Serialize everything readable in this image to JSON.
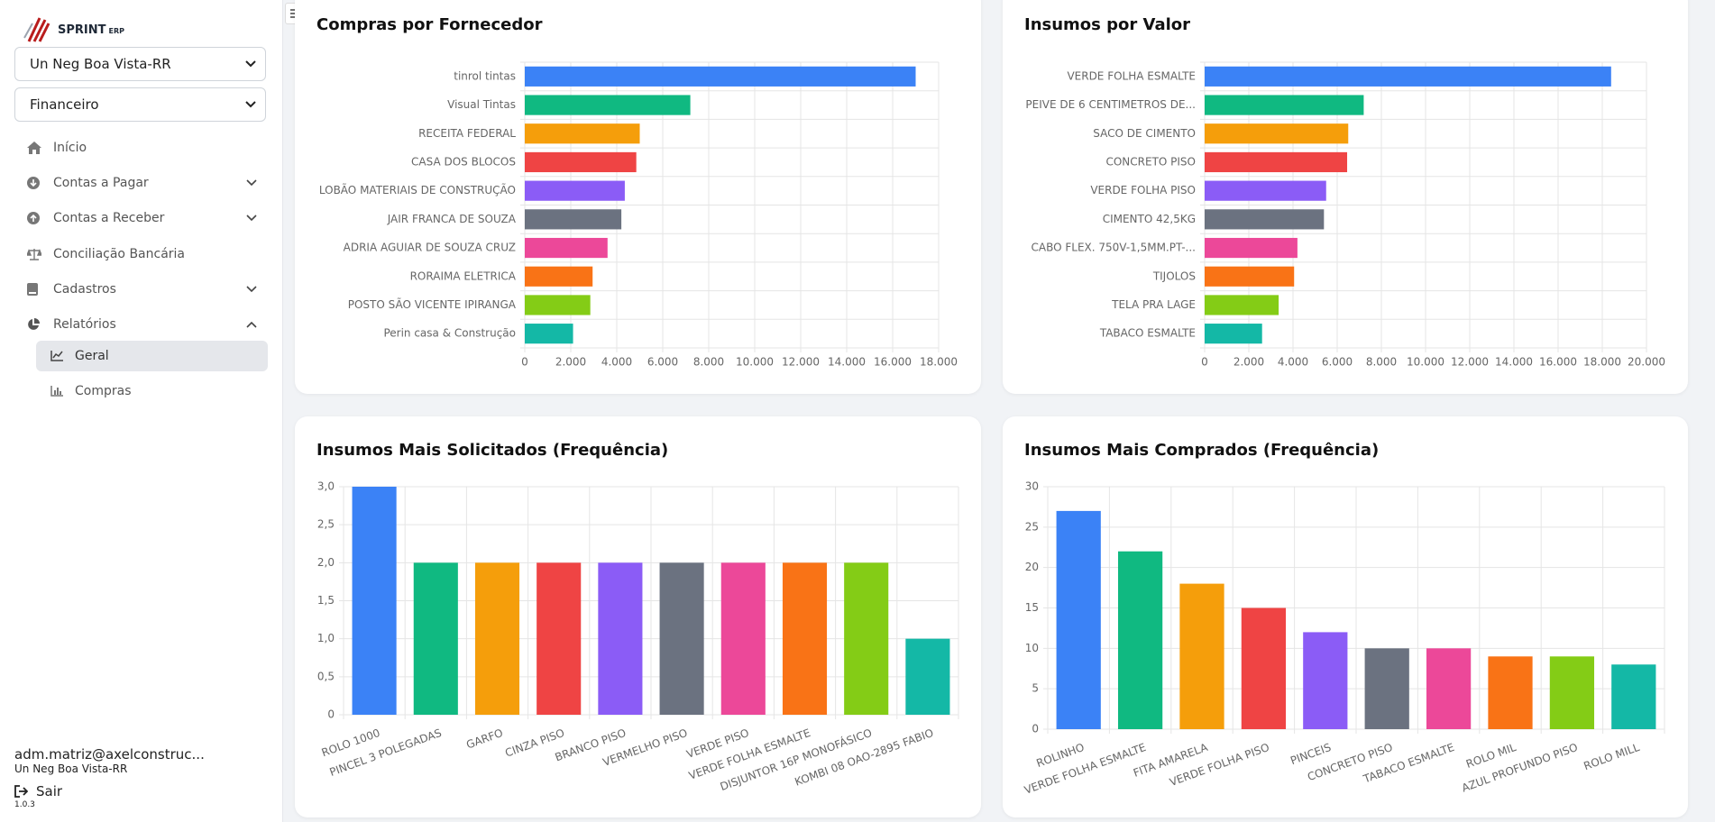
{
  "sidebar": {
    "logo": {
      "name": "SPRINT",
      "suffix": "ERP"
    },
    "selects": [
      "Un Neg Boa Vista-RR",
      "Financeiro"
    ],
    "menu": [
      "Início",
      "Contas a Pagar",
      "Contas a Receber",
      "Conciliação Bancária",
      "Cadastros",
      "Relatórios"
    ],
    "submenu": [
      "Geral",
      "Compras"
    ],
    "user": {
      "email": "adm.matriz@axelconstruc...",
      "unit": "Un Neg Boa Vista-RR",
      "logout": "Sair",
      "version": "1.0.3"
    }
  },
  "chart_data": [
    {
      "type": "hbar",
      "title": "Compras por Fornecedor",
      "categories": [
        "tinrol tintas",
        "Visual Tintas",
        "RECEITA FEDERAL",
        "CASA DOS BLOCOS",
        "LOBÃO MATERIAIS DE CONSTRUÇÃO",
        "JAIR FRANCA DE SOUZA",
        "ADRIA AGUIAR DE SOUZA CRUZ",
        "RORAIMA ELETRICA",
        "POSTO SÃO VICENTE IPIRANGA",
        "Perin casa & Construção"
      ],
      "values": [
        17000,
        7200,
        5000,
        4850,
        4350,
        4200,
        3600,
        2950,
        2850,
        2100
      ],
      "colors": [
        "#3b82f6",
        "#10b981",
        "#f59e0b",
        "#ef4444",
        "#8b5cf6",
        "#6b7280",
        "#ec4899",
        "#f97316",
        "#84cc16",
        "#14b8a6"
      ],
      "xlim": [
        0,
        18000
      ],
      "xticks": [
        0,
        {
          "value": 2000,
          "label": "2.000"
        },
        {
          "value": 4000,
          "label": "4.000"
        },
        {
          "value": 6000,
          "label": "6.000"
        },
        {
          "value": 8000,
          "label": "8.000"
        },
        {
          "value": 10000,
          "label": "10.000"
        },
        {
          "value": 12000,
          "label": "12.000"
        },
        {
          "value": 14000,
          "label": "14.000"
        },
        {
          "value": 16000,
          "label": "16.000"
        },
        {
          "value": 18000,
          "label": "18.000"
        }
      ],
      "grid": true
    },
    {
      "type": "hbar",
      "title": "Insumos por Valor",
      "categories": [
        "VERDE FOLHA ESMALTE",
        "PEIVE DE 6 CENTIMETROS DE...",
        "SACO DE CIMENTO",
        "CONCRETO PISO",
        "VERDE FOLHA PISO",
        "CIMENTO 42,5KG",
        "CABO FLEX. 750V-1,5MM.PT-...",
        "TIJOLOS",
        "TELA PRA LAGE",
        "TABACO ESMALTE"
      ],
      "values": [
        18400,
        7200,
        6500,
        6450,
        5500,
        5400,
        4200,
        4050,
        3350,
        2600
      ],
      "colors": [
        "#3b82f6",
        "#10b981",
        "#f59e0b",
        "#ef4444",
        "#8b5cf6",
        "#6b7280",
        "#ec4899",
        "#f97316",
        "#84cc16",
        "#14b8a6"
      ],
      "xlim": [
        0,
        20000
      ],
      "xticks": [
        0,
        {
          "value": 2000,
          "label": "2.000"
        },
        {
          "value": 4000,
          "label": "4.000"
        },
        {
          "value": 6000,
          "label": "6.000"
        },
        {
          "value": 8000,
          "label": "8.000"
        },
        {
          "value": 10000,
          "label": "10.000"
        },
        {
          "value": 12000,
          "label": "12.000"
        },
        {
          "value": 14000,
          "label": "14.000"
        },
        {
          "value": 16000,
          "label": "16.000"
        },
        {
          "value": 18000,
          "label": "18.000"
        },
        {
          "value": 20000,
          "label": "20.000"
        }
      ],
      "grid": true
    },
    {
      "type": "bar",
      "title": "Insumos Mais Solicitados (Frequência)",
      "categories": [
        "ROLO 1000",
        "PINCEL 3 POLEGADAS",
        "GARFO",
        "CINZA PISO",
        "BRANCO PISO",
        "VERMELHO PISO",
        "VERDE PISO",
        "VERDE FOLHA ESMALTE",
        "DISJUNTOR 16P MONOFÁSICO",
        "KOMBI 08 OAO-2895 FABIO"
      ],
      "values": [
        3,
        2,
        2,
        2,
        2,
        2,
        2,
        2,
        2,
        1
      ],
      "colors": [
        "#3b82f6",
        "#10b981",
        "#f59e0b",
        "#ef4444",
        "#8b5cf6",
        "#6b7280",
        "#ec4899",
        "#f97316",
        "#84cc16",
        "#14b8a6"
      ],
      "ylim": [
        0,
        3
      ],
      "yticks": [
        0,
        {
          "value": 0.5,
          "label": "0,5"
        },
        {
          "value": 1,
          "label": "1,0"
        },
        {
          "value": 1.5,
          "label": "1,5"
        },
        {
          "value": 2,
          "label": "2,0"
        },
        {
          "value": 2.5,
          "label": "2,5"
        },
        {
          "value": 3,
          "label": "3,0"
        }
      ],
      "grid": true
    },
    {
      "type": "bar",
      "title": "Insumos Mais Comprados (Frequência)",
      "categories": [
        "ROLINHO",
        "VERDE FOLHA ESMALTE",
        "FITA AMARELA",
        "VERDE FOLHA PISO",
        "PINCEIS",
        "CONCRETO PISO",
        "TABACO ESMALTE",
        "ROLO MIL",
        "AZUL PROFUNDO PISO",
        "ROLO MILL"
      ],
      "values": [
        27,
        22,
        18,
        15,
        12,
        10,
        10,
        9,
        9,
        8
      ],
      "colors": [
        "#3b82f6",
        "#10b981",
        "#f59e0b",
        "#ef4444",
        "#8b5cf6",
        "#6b7280",
        "#ec4899",
        "#f97316",
        "#84cc16",
        "#14b8a6"
      ],
      "ylim": [
        0,
        30
      ],
      "yticks": [
        0,
        5,
        10,
        15,
        20,
        25,
        30
      ],
      "grid": true
    }
  ]
}
